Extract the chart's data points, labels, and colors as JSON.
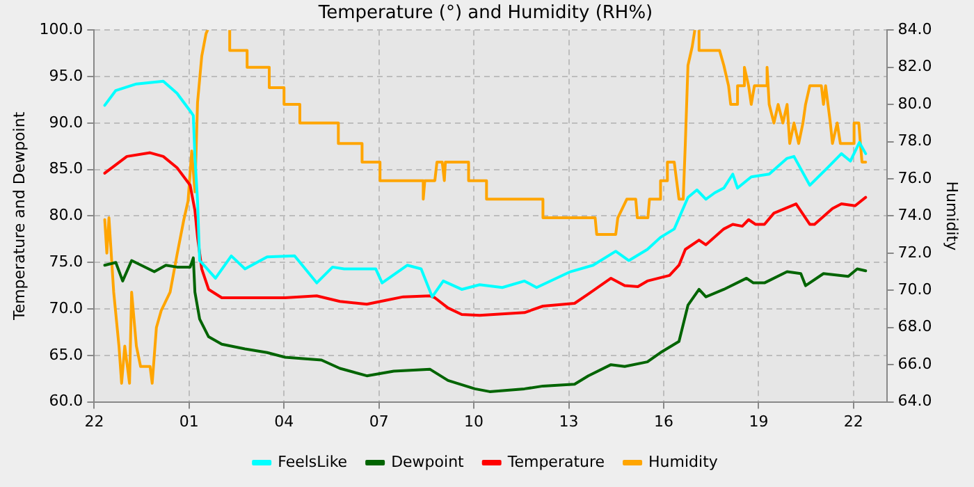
{
  "chart_data": {
    "type": "line",
    "title": "Temperature (°) and Humidity (RH%)",
    "ylabel": "Temperature and Dewpoint",
    "y2label": "Humidity",
    "xlim": [
      "--01-01T22:00",
      "--01-02T23:03"
    ],
    "xticks": [
      {
        "value": "--01-01T22:00",
        "label": "22"
      },
      {
        "value": "--01-02T01:00",
        "label": "01"
      },
      {
        "value": "--01-02T04:00",
        "label": "04"
      },
      {
        "value": "--01-02T07:00",
        "label": "07"
      },
      {
        "value": "--01-02T10:00",
        "label": "10"
      },
      {
        "value": "--01-02T13:00",
        "label": "13"
      },
      {
        "value": "--01-02T16:00",
        "label": "16"
      },
      {
        "value": "--01-02T19:00",
        "label": "19"
      },
      {
        "value": "--01-02T22:00",
        "label": "22"
      }
    ],
    "ylim": [
      60,
      100
    ],
    "yticks": [
      {
        "value": 60,
        "label": "60.0"
      },
      {
        "value": 65,
        "label": "65.0"
      },
      {
        "value": 70,
        "label": "70.0"
      },
      {
        "value": 75,
        "label": "75.0"
      },
      {
        "value": 80,
        "label": "80.0"
      },
      {
        "value": 85,
        "label": "85.0"
      },
      {
        "value": 90,
        "label": "90.0"
      },
      {
        "value": 95,
        "label": "95.0"
      },
      {
        "value": 100,
        "label": "100.0"
      }
    ],
    "y2lim": [
      64,
      84
    ],
    "y2ticks": [
      {
        "value": 64,
        "label": "64.0"
      },
      {
        "value": 66,
        "label": "66.0"
      },
      {
        "value": 68,
        "label": "68.0"
      },
      {
        "value": 70,
        "label": "70.0"
      },
      {
        "value": 72,
        "label": "72.0"
      },
      {
        "value": 74,
        "label": "74.0"
      },
      {
        "value": 76,
        "label": "76.0"
      },
      {
        "value": 78,
        "label": "78.0"
      },
      {
        "value": 80,
        "label": "80.0"
      },
      {
        "value": 82,
        "label": "82.0"
      },
      {
        "value": 84,
        "label": "84.0"
      }
    ],
    "grid": true,
    "legend": "bottom",
    "marker": "none",
    "line_style": "solid",
    "series": [
      {
        "name": "FeelsLike",
        "color": "#00ffff",
        "x": [
          "--01-01T22:20",
          "--01-01T22:41",
          "--01-01T23:20",
          "--01-02T00:11",
          "--01-02T00:37",
          "--01-02T01:02",
          "--01-02T01:08",
          "--01-02T01:11",
          "--01-02T01:16",
          "--01-02T01:20",
          "--01-02T01:28",
          "--01-02T01:50",
          "--01-02T02:20",
          "--01-02T02:46",
          "--01-02T03:28",
          "--01-02T04:20",
          "--01-02T05:02",
          "--01-02T05:32",
          "--01-02T05:54",
          "--01-02T06:54",
          "--01-02T07:06",
          "--01-02T07:54",
          "--01-02T08:20",
          "--01-02T08:41",
          "--01-02T09:02",
          "--01-02T09:37",
          "--01-02T10:11",
          "--01-02T10:54",
          "--01-02T11:36",
          "--01-02T11:59",
          "--01-02T13:03",
          "--01-02T13:46",
          "--01-02T14:29",
          "--01-02T14:54",
          "--01-02T15:29",
          "--01-02T15:54",
          "--01-02T16:20",
          "--01-02T16:46",
          "--01-02T17:03",
          "--01-02T17:20",
          "--01-02T17:37",
          "--01-02T17:54",
          "--01-02T18:11",
          "--01-02T18:20",
          "--01-02T18:46",
          "--01-02T19:20",
          "--01-02T19:54",
          "--01-02T20:07",
          "--01-02T20:37",
          "--01-02T21:11",
          "--01-02T21:37",
          "--01-02T21:54",
          "--01-02T22:11",
          "--01-02T22:23"
        ],
        "values": [
          91.9,
          93.5,
          94.2,
          94.5,
          93.2,
          91.3,
          90.8,
          86.4,
          81.6,
          75.2,
          74.7,
          73.3,
          75.7,
          74.3,
          75.6,
          75.7,
          72.8,
          74.5,
          74.3,
          74.3,
          72.8,
          74.7,
          74.3,
          71.3,
          73.0,
          72.1,
          72.6,
          72.3,
          73.0,
          72.3,
          74.0,
          74.7,
          76.2,
          75.2,
          76.4,
          77.7,
          78.6,
          82.0,
          82.8,
          81.8,
          82.5,
          83.0,
          84.5,
          83.0,
          84.2,
          84.5,
          86.2,
          86.4,
          83.3,
          85.2,
          86.7,
          85.9,
          87.9,
          86.7
        ]
      },
      {
        "name": "Dewpoint",
        "color": "#006400",
        "x": [
          "--01-01T22:20",
          "--01-01T22:41",
          "--01-01T22:54",
          "--01-01T23:11",
          "--01-01T23:54",
          "--01-02T00:16",
          "--01-02T00:37",
          "--01-02T01:02",
          "--01-02T01:08",
          "--01-02T01:11",
          "--01-02T01:20",
          "--01-02T01:37",
          "--01-02T02:02",
          "--01-02T02:46",
          "--01-02T03:28",
          "--01-02T04:02",
          "--01-02T05:11",
          "--01-02T05:46",
          "--01-02T06:37",
          "--01-02T07:28",
          "--01-02T08:37",
          "--01-02T09:11",
          "--01-02T10:02",
          "--01-02T10:30",
          "--01-02T11:36",
          "--01-02T12:11",
          "--01-02T13:11",
          "--01-02T13:37",
          "--01-02T14:20",
          "--01-02T14:46",
          "--01-02T15:29",
          "--01-02T15:54",
          "--01-02T16:29",
          "--01-02T16:46",
          "--01-02T17:07",
          "--01-02T17:20",
          "--01-02T17:54",
          "--01-02T18:37",
          "--01-02T18:50",
          "--01-02T19:11",
          "--01-02T19:54",
          "--01-02T20:20",
          "--01-02T20:29",
          "--01-02T21:03",
          "--01-02T21:50",
          "--01-02T22:07",
          "--01-02T22:23"
        ],
        "values": [
          74.7,
          75.0,
          73.0,
          75.2,
          74.0,
          74.7,
          74.5,
          74.5,
          75.5,
          71.8,
          68.9,
          67.0,
          66.2,
          65.7,
          65.3,
          64.8,
          64.5,
          63.6,
          62.8,
          63.3,
          63.5,
          62.3,
          61.4,
          61.1,
          61.4,
          61.7,
          61.9,
          62.8,
          64.0,
          63.8,
          64.3,
          65.3,
          66.5,
          70.4,
          72.1,
          71.3,
          72.1,
          73.3,
          72.8,
          72.8,
          74.0,
          73.8,
          72.5,
          73.8,
          73.5,
          74.3,
          74.1
        ]
      },
      {
        "name": "Temperature",
        "color": "#ff0000",
        "x": [
          "--01-01T22:20",
          "--01-01T23:02",
          "--01-01T23:46",
          "--01-02T00:11",
          "--01-02T00:37",
          "--01-02T01:02",
          "--01-02T01:11",
          "--01-02T01:16",
          "--01-02T01:24",
          "--01-02T01:37",
          "--01-02T02:02",
          "--01-02T02:46",
          "--01-02T04:02",
          "--01-02T05:02",
          "--01-02T05:46",
          "--01-02T06:37",
          "--01-02T07:11",
          "--01-02T07:46",
          "--01-02T08:37",
          "--01-02T08:46",
          "--01-02T09:11",
          "--01-02T09:37",
          "--01-02T10:11",
          "--01-02T11:36",
          "--01-02T12:11",
          "--01-02T13:11",
          "--01-02T13:37",
          "--01-02T14:20",
          "--01-02T14:46",
          "--01-02T15:11",
          "--01-02T15:29",
          "--01-02T16:11",
          "--01-02T16:29",
          "--01-02T16:41",
          "--01-02T17:07",
          "--01-02T17:20",
          "--01-02T17:54",
          "--01-02T18:11",
          "--01-02T18:29",
          "--01-02T18:41",
          "--01-02T18:54",
          "--01-02T19:11",
          "--01-02T19:29",
          "--01-02T20:11",
          "--01-02T20:37",
          "--01-02T20:46",
          "--01-02T21:20",
          "--01-02T21:37",
          "--01-02T22:03",
          "--01-02T22:23"
        ],
        "values": [
          84.6,
          86.4,
          86.8,
          86.4,
          85.2,
          83.3,
          80.6,
          77.7,
          74.3,
          72.1,
          71.2,
          71.2,
          71.2,
          71.4,
          70.8,
          70.5,
          70.9,
          71.3,
          71.4,
          71.2,
          70.1,
          69.4,
          69.3,
          69.6,
          70.3,
          70.6,
          71.6,
          73.3,
          72.5,
          72.4,
          73.0,
          73.6,
          74.7,
          76.4,
          77.4,
          76.9,
          78.6,
          79.1,
          78.9,
          79.6,
          79.1,
          79.1,
          80.3,
          81.3,
          79.1,
          79.1,
          80.8,
          81.3,
          81.1,
          82.0
        ]
      },
      {
        "name": "Humidity",
        "color": "#ffa500",
        "axis": "y2",
        "x": [
          "--01-01T22:20",
          "--01-01T22:24",
          "--01-01T22:28",
          "--01-01T22:37",
          "--01-01T22:47",
          "--01-01T22:52",
          "--01-01T22:58",
          "--01-01T23:07",
          "--01-01T23:11",
          "--01-01T23:20",
          "--01-01T23:28",
          "--01-01T23:46",
          "--01-01T23:50",
          "--01-01T23:58",
          "--01-02T00:07",
          "--01-02T00:24",
          "--01-02T00:37",
          "--01-02T00:50",
          "--01-02T00:58",
          "--01-02T01:05",
          "--01-02T01:11",
          "--01-02T01:16",
          "--01-02T01:24",
          "--01-02T01:32",
          "--01-02T01:35",
          "--01-02T01:54",
          "--01-02T02:17",
          "--01-02T02:17",
          "--01-02T02:50",
          "--01-02T02:50",
          "--01-02T03:32",
          "--01-02T03:32",
          "--01-02T04:00",
          "--01-02T04:00",
          "--01-02T04:30",
          "--01-02T04:30",
          "--01-02T05:43",
          "--01-02T05:43",
          "--01-02T06:28",
          "--01-02T06:28",
          "--01-02T07:02",
          "--01-02T07:02",
          "--01-02T08:24",
          "--01-02T08:24",
          "--01-02T08:27",
          "--01-02T08:46",
          "--01-02T08:50",
          "--01-02T09:00",
          "--01-02T09:04",
          "--01-02T09:06",
          "--01-02T09:50",
          "--01-02T09:50",
          "--01-02T10:24",
          "--01-02T10:24",
          "--01-02T12:11",
          "--01-02T12:11",
          "--01-02T13:50",
          "--01-02T13:53",
          "--01-02T14:29",
          "--01-02T14:33",
          "--01-02T14:50",
          "--01-02T15:07",
          "--01-02T15:10",
          "--01-02T15:30",
          "--01-02T15:33",
          "--01-02T15:54",
          "--01-02T15:54",
          "--01-02T16:07",
          "--01-02T16:07",
          "--01-02T16:20",
          "--01-02T16:24",
          "--01-02T16:29",
          "--01-02T16:37",
          "--01-02T16:41",
          "--01-02T16:46",
          "--01-02T16:54",
          "--01-02T16:59",
          "--01-02T17:03",
          "--01-02T17:07",
          "--01-02T17:07",
          "--01-02T17:46",
          "--01-02T17:54",
          "--01-02T18:03",
          "--01-02T18:07",
          "--01-02T18:20",
          "--01-02T18:20",
          "--01-02T18:33",
          "--01-02T18:33",
          "--01-02T18:41",
          "--01-02T18:46",
          "--01-02T18:52",
          "--01-02T19:16",
          "--01-02T19:16",
          "--01-02T19:20",
          "--01-02T19:29",
          "--01-02T19:37",
          "--01-02T19:46",
          "--01-02T19:54",
          "--01-02T19:59",
          "--01-02T20:07",
          "--01-02T20:16",
          "--01-02T20:24",
          "--01-02T20:29",
          "--01-02T20:37",
          "--01-02T20:59",
          "--01-02T21:03",
          "--01-02T21:07",
          "--01-02T21:16",
          "--01-02T21:20",
          "--01-02T21:29",
          "--01-02T21:35",
          "--01-02T21:59",
          "--01-02T22:01",
          "--01-02T22:10",
          "--01-02T22:13",
          "--01-02T22:16",
          "--01-02T22:23"
        ],
        "values": [
          73.8,
          72.0,
          73.9,
          69.9,
          67.0,
          65.0,
          67.0,
          65.0,
          69.9,
          67.0,
          65.9,
          65.9,
          65.0,
          68.0,
          68.9,
          69.9,
          71.9,
          73.8,
          74.8,
          77.5,
          75.3,
          80.1,
          82.6,
          83.8,
          84,
          null,
          84,
          82.9,
          82.9,
          82.0,
          82.0,
          80.9,
          80.9,
          80.0,
          80.0,
          79.0,
          79.0,
          77.9,
          77.9,
          76.9,
          76.9,
          75.9,
          75.9,
          74.9,
          75.9,
          75.9,
          76.9,
          76.9,
          75.9,
          76.9,
          76.9,
          75.9,
          75.9,
          74.9,
          74.9,
          73.9,
          73.9,
          73.0,
          73.0,
          73.9,
          74.9,
          74.9,
          73.9,
          73.9,
          74.9,
          74.9,
          75.9,
          75.9,
          76.9,
          76.9,
          76.0,
          74.9,
          74.9,
          77.9,
          82.1,
          83.1,
          84,
          null,
          84,
          82.9,
          82.9,
          82.1,
          81.0,
          80.0,
          80.0,
          81.0,
          81.0,
          82.0,
          81.0,
          80.0,
          81.0,
          81.0,
          82.0,
          80.0,
          79.0,
          80.0,
          79.0,
          80.0,
          77.9,
          79.0,
          77.9,
          79.0,
          80.0,
          81.0,
          81.0,
          80.0,
          81.0,
          79.0,
          77.9,
          79.0,
          77.9,
          77.9,
          79.0,
          79.0,
          77.9,
          76.9,
          76.9
        ]
      }
    ]
  }
}
